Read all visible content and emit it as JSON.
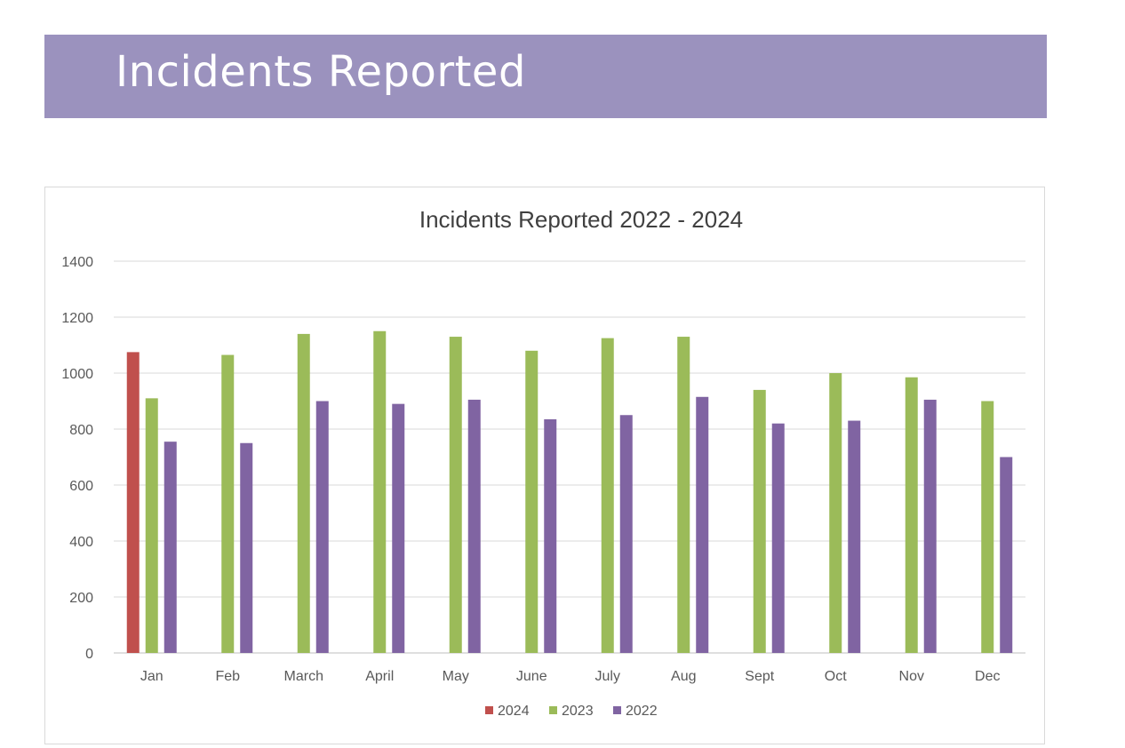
{
  "header": {
    "title": "Incidents Reported"
  },
  "colors": {
    "banner": "#9b92be",
    "s2024": "#c0504d",
    "s2023": "#9bbb59",
    "s2022": "#8064a2",
    "grid": "#d9d9d9"
  },
  "chart_data": {
    "type": "bar",
    "title": "Incidents Reported 2022 - 2024",
    "xlabel": "",
    "ylabel": "",
    "ylim": [
      0,
      1400
    ],
    "yticks": [
      0,
      200,
      400,
      600,
      800,
      1000,
      1200,
      1400
    ],
    "grid": true,
    "legend_position": "bottom",
    "categories": [
      "Jan",
      "Feb",
      "March",
      "April",
      "May",
      "June",
      "July",
      "Aug",
      "Sept",
      "Oct",
      "Nov",
      "Dec"
    ],
    "series": [
      {
        "name": "2024",
        "color": "#c0504d",
        "values": [
          1075,
          null,
          null,
          null,
          null,
          null,
          null,
          null,
          null,
          null,
          null,
          null
        ]
      },
      {
        "name": "2023",
        "color": "#9bbb59",
        "values": [
          910,
          1065,
          1140,
          1150,
          1130,
          1080,
          1125,
          1130,
          940,
          1000,
          985,
          900
        ]
      },
      {
        "name": "2022",
        "color": "#8064a2",
        "values": [
          755,
          750,
          900,
          890,
          905,
          835,
          850,
          915,
          820,
          830,
          905,
          700
        ]
      }
    ]
  }
}
